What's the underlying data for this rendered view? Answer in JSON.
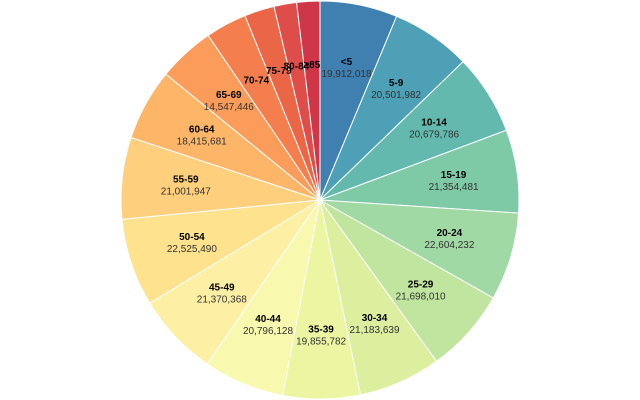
{
  "chart_data": {
    "type": "pie",
    "start_angle_deg": 0,
    "direction": "clockwise",
    "slices": [
      {
        "label": "<5",
        "value": 19912018,
        "value_text": "19,912,018",
        "color": "#3f80b1",
        "show_value": true
      },
      {
        "label": "5-9",
        "value": 20501982,
        "value_text": "20,501,982",
        "color": "#4da0b6",
        "show_value": true
      },
      {
        "label": "10-14",
        "value": 20679786,
        "value_text": "20,679,786",
        "color": "#63b9ae",
        "show_value": true
      },
      {
        "label": "15-19",
        "value": 21354481,
        "value_text": "21,354,481",
        "color": "#7fcaa6",
        "show_value": true
      },
      {
        "label": "20-24",
        "value": 22604232,
        "value_text": "22,604,232",
        "color": "#a0d9a3",
        "show_value": true
      },
      {
        "label": "25-29",
        "value": 21698010,
        "value_text": "21,698,010",
        "color": "#c0e59f",
        "show_value": true
      },
      {
        "label": "30-34",
        "value": 21183639,
        "value_text": "21,183,639",
        "color": "#dbef9f",
        "show_value": true
      },
      {
        "label": "35-39",
        "value": 19855782,
        "value_text": "19,855,782",
        "color": "#ecf6a2",
        "show_value": true
      },
      {
        "label": "40-44",
        "value": 20796128,
        "value_text": "20,796,128",
        "color": "#f8f8ae",
        "show_value": true
      },
      {
        "label": "45-49",
        "value": 21370368,
        "value_text": "21,370,368",
        "color": "#fdf0a4",
        "show_value": true
      },
      {
        "label": "50-54",
        "value": 22525490,
        "value_text": "22,525,490",
        "color": "#fee28e",
        "show_value": true
      },
      {
        "label": "55-59",
        "value": 21001947,
        "value_text": "21,001,947",
        "color": "#fecf7c",
        "show_value": true
      },
      {
        "label": "60-64",
        "value": 18415681,
        "value_text": "18,415,681",
        "color": "#fdb668",
        "show_value": true
      },
      {
        "label": "65-69",
        "value": 14547446,
        "value_text": "14,547,446",
        "color": "#fb9c5a",
        "show_value": true
      },
      {
        "label": "70-74",
        "value": 10587721,
        "value_text": "",
        "color": "#f47e4d",
        "show_value": false
      },
      {
        "label": "75-79",
        "value": 7730129,
        "value_text": "",
        "color": "#ea6647",
        "show_value": false
      },
      {
        "label": "80-84",
        "value": 5811429,
        "value_text": "",
        "color": "#de4d4a",
        "show_value": false
      },
      {
        "label": "≥85",
        "value": 5938752,
        "value_text": "",
        "color": "#cf3749",
        "show_value": false
      }
    ]
  }
}
